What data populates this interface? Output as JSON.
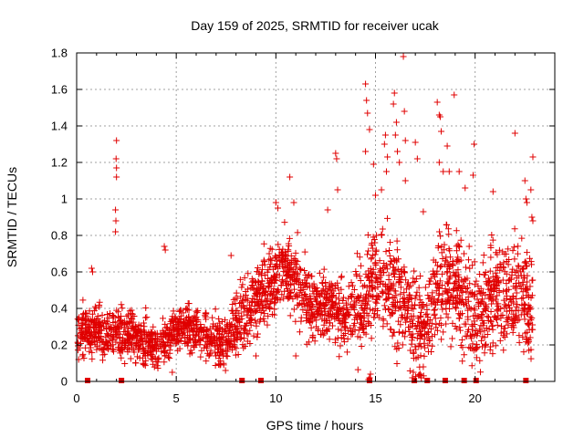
{
  "chart_data": {
    "type": "scatter",
    "title": "Day 159 of 2025, SRMTID for receiver ucak",
    "xlabel": "GPS time / hours",
    "ylabel": "SRMTID / TECUs",
    "xlim": [
      0,
      24
    ],
    "ylim": [
      0,
      1.8
    ],
    "xticks": [
      0,
      5,
      10,
      15,
      20
    ],
    "xtick_labels": [
      "0",
      "5",
      "10",
      "15",
      "20"
    ],
    "yticks": [
      0,
      0.2,
      0.4,
      0.6,
      0.8,
      1,
      1.2,
      1.4,
      1.6,
      1.8
    ],
    "ytick_labels": [
      "0",
      "0.2",
      "0.4",
      "0.6",
      "0.8",
      "1",
      "1.2",
      "1.4",
      "1.6",
      "1.8"
    ],
    "grid": true,
    "marker": "+",
    "color": "#e00000",
    "gap_markers_x": [
      0.55,
      2.25,
      8.3,
      9.25,
      14.7,
      16.95,
      17.6,
      18.5,
      19.45,
      20.05,
      22.55
    ],
    "series": [
      {
        "name": "SRMTID",
        "profile": [
          [
            0.0,
            0.25
          ],
          [
            0.5,
            0.3
          ],
          [
            1.0,
            0.28
          ],
          [
            1.5,
            0.25
          ],
          [
            2.0,
            0.26
          ],
          [
            2.5,
            0.27
          ],
          [
            3.0,
            0.23
          ],
          [
            3.5,
            0.22
          ],
          [
            4.0,
            0.2
          ],
          [
            4.5,
            0.22
          ],
          [
            5.0,
            0.3
          ],
          [
            5.5,
            0.3
          ],
          [
            6.0,
            0.27
          ],
          [
            6.5,
            0.25
          ],
          [
            7.0,
            0.22
          ],
          [
            7.5,
            0.2
          ],
          [
            8.0,
            0.3
          ],
          [
            8.5,
            0.4
          ],
          [
            9.0,
            0.48
          ],
          [
            9.5,
            0.5
          ],
          [
            10.0,
            0.58
          ],
          [
            10.5,
            0.65
          ],
          [
            11.0,
            0.55
          ],
          [
            11.5,
            0.45
          ],
          [
            12.0,
            0.4
          ],
          [
            12.5,
            0.42
          ],
          [
            13.0,
            0.38
          ],
          [
            13.5,
            0.35
          ],
          [
            14.0,
            0.4
          ],
          [
            14.5,
            0.45
          ],
          [
            15.0,
            0.55
          ],
          [
            15.5,
            0.55
          ],
          [
            16.0,
            0.5
          ],
          [
            16.5,
            0.45
          ],
          [
            17.0,
            0.3
          ],
          [
            17.5,
            0.3
          ],
          [
            18.0,
            0.5
          ],
          [
            18.5,
            0.55
          ],
          [
            19.0,
            0.5
          ],
          [
            19.5,
            0.42
          ],
          [
            20.0,
            0.38
          ],
          [
            20.5,
            0.4
          ],
          [
            21.0,
            0.45
          ],
          [
            21.5,
            0.48
          ],
          [
            22.0,
            0.5
          ],
          [
            22.5,
            0.45
          ],
          [
            23.0,
            0.4
          ]
        ],
        "outliers": [
          [
            2.0,
            1.32
          ],
          [
            1.98,
            1.22
          ],
          [
            2.0,
            1.17
          ],
          [
            2.0,
            1.12
          ],
          [
            1.95,
            0.94
          ],
          [
            1.97,
            0.88
          ],
          [
            1.95,
            0.82
          ],
          [
            0.8,
            0.6
          ],
          [
            0.75,
            0.62
          ],
          [
            4.4,
            0.74
          ],
          [
            4.45,
            0.72
          ],
          [
            7.75,
            0.69
          ],
          [
            10.7,
            1.12
          ],
          [
            10.9,
            0.98
          ],
          [
            10.0,
            0.98
          ],
          [
            10.1,
            0.95
          ],
          [
            13.0,
            1.25
          ],
          [
            13.05,
            1.22
          ],
          [
            13.1,
            1.05
          ],
          [
            12.6,
            0.94
          ],
          [
            14.5,
            1.63
          ],
          [
            14.55,
            1.54
          ],
          [
            14.6,
            1.47
          ],
          [
            14.7,
            1.38
          ],
          [
            14.5,
            1.26
          ],
          [
            14.9,
            1.19
          ],
          [
            15.0,
            1.02
          ],
          [
            15.3,
            1.05
          ],
          [
            15.5,
            1.35
          ],
          [
            15.45,
            1.3
          ],
          [
            15.6,
            1.23
          ],
          [
            15.55,
            1.15
          ],
          [
            15.95,
            1.58
          ],
          [
            15.9,
            1.52
          ],
          [
            16.05,
            1.42
          ],
          [
            16.0,
            1.35
          ],
          [
            16.1,
            1.26
          ],
          [
            16.2,
            1.2
          ],
          [
            16.4,
            1.78
          ],
          [
            16.45,
            1.48
          ],
          [
            16.5,
            1.32
          ],
          [
            16.5,
            1.1
          ],
          [
            17.0,
            1.31
          ],
          [
            17.1,
            1.22
          ],
          [
            17.4,
            0.93
          ],
          [
            18.1,
            1.53
          ],
          [
            18.2,
            1.46
          ],
          [
            18.25,
            1.45
          ],
          [
            18.3,
            1.37
          ],
          [
            18.2,
            1.2
          ],
          [
            18.4,
            1.15
          ],
          [
            18.6,
            1.29
          ],
          [
            18.7,
            1.15
          ],
          [
            18.95,
            1.57
          ],
          [
            19.2,
            1.15
          ],
          [
            19.5,
            1.06
          ],
          [
            19.95,
            1.3
          ],
          [
            19.9,
            1.13
          ],
          [
            20.9,
            1.04
          ],
          [
            22.0,
            1.36
          ],
          [
            22.5,
            1.1
          ],
          [
            22.55,
            1.0
          ],
          [
            22.6,
            0.98
          ],
          [
            22.9,
            1.23
          ],
          [
            22.8,
            1.05
          ],
          [
            22.85,
            0.9
          ],
          [
            22.9,
            0.88
          ],
          [
            14.7,
            0.02
          ],
          [
            14.75,
            0.04
          ],
          [
            14.65,
            0.01
          ],
          [
            17.25,
            0.04
          ],
          [
            17.3,
            0.02
          ],
          [
            17.4,
            0.08
          ],
          [
            16.9,
            0.05
          ],
          [
            16.85,
            0.02
          ],
          [
            0.1,
            0.12
          ],
          [
            4.8,
            0.05
          ],
          [
            7.2,
            0.09
          ],
          [
            9.0,
            0.14
          ],
          [
            11.0,
            0.14
          ],
          [
            17.3,
            0.32
          ],
          [
            17.2,
            0.3
          ],
          [
            22.6,
            0.23
          ],
          [
            22.65,
            0.21
          ],
          [
            22.7,
            0.17
          ]
        ]
      }
    ]
  }
}
